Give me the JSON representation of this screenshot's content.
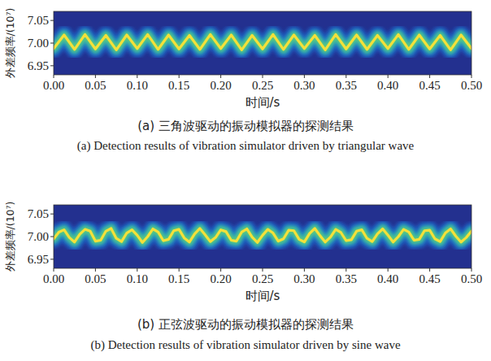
{
  "chart_data": [
    {
      "type": "line",
      "title": "(a) 三角波驱动的振动模拟器的探测结果",
      "subtitle": "(a) Detection results of vibration simulator driven by triangular wave",
      "x_label": "时间/s",
      "y_label": "外差频率/(10⁷)",
      "color": "#f4e03a",
      "grid": false,
      "xlim": [
        0,
        0.5
      ],
      "ylim": [
        6.93,
        7.07
      ],
      "xticks": [
        {
          "value": 0,
          "label": "0.00"
        },
        {
          "value": 0.05,
          "label": "0.05"
        },
        {
          "value": 0.1,
          "label": "0.10"
        },
        {
          "value": 0.15,
          "label": "0.15"
        },
        {
          "value": 0.2,
          "label": "0.20"
        },
        {
          "value": 0.25,
          "label": "0.25"
        },
        {
          "value": 0.3,
          "label": "0.30"
        },
        {
          "value": 0.35,
          "label": "0.35"
        },
        {
          "value": 0.4,
          "label": "0.40"
        },
        {
          "value": 0.45,
          "label": "0.45"
        },
        {
          "value": 0.5,
          "label": "0.50"
        }
      ],
      "yticks": [
        6.95,
        {
          "value": 7,
          "label": "7.00"
        },
        7.05
      ],
      "x": [
        0,
        0.0125,
        0.025,
        0.0375,
        0.05,
        0.0625,
        0.075,
        0.0875,
        0.1,
        0.1125,
        0.125,
        0.1375,
        0.15,
        0.1625,
        0.175,
        0.1875,
        0.2,
        0.2125,
        0.225,
        0.2375,
        0.25,
        0.2625,
        0.275,
        0.2875,
        0.3,
        0.3125,
        0.325,
        0.3375,
        0.35,
        0.3625,
        0.375,
        0.3875,
        0.4,
        0.4125,
        0.425,
        0.4375,
        0.45,
        0.4625,
        0.475,
        0.4875,
        0.5
      ],
      "values": [
        6.988,
        7.018,
        6.986,
        7.019,
        6.987,
        7.017,
        6.985,
        7.018,
        6.988,
        7.019,
        6.986,
        7.018,
        6.987,
        7.017,
        6.986,
        7.019,
        6.988,
        7.018,
        6.985,
        7.017,
        6.987,
        7.019,
        6.986,
        7.018,
        6.988,
        7.017,
        6.985,
        7.019,
        6.987,
        7.018,
        6.986,
        7.017,
        6.988,
        7.019,
        6.986,
        7.018,
        6.987,
        7.017,
        6.985,
        7.018,
        6.988
      ]
    },
    {
      "type": "line",
      "title": "(b) 正弦波驱动的振动模拟器的探测结果",
      "subtitle": "(b) Detection results of vibration simulator driven by sine wave",
      "x_label": "时间/s",
      "y_label": "外差频率/(10⁷)",
      "color": "#f4e03a",
      "grid": false,
      "xlim": [
        0,
        0.5
      ],
      "ylim": [
        6.93,
        7.07
      ],
      "xticks": [
        {
          "value": 0,
          "label": "0.00"
        },
        {
          "value": 0.05,
          "label": "0.05"
        },
        {
          "value": 0.1,
          "label": "0.10"
        },
        {
          "value": 0.15,
          "label": "0.15"
        },
        {
          "value": 0.2,
          "label": "0.20"
        },
        {
          "value": 0.25,
          "label": "0.25"
        },
        {
          "value": 0.3,
          "label": "0.30"
        },
        {
          "value": 0.35,
          "label": "0.35"
        },
        {
          "value": 0.4,
          "label": "0.40"
        },
        {
          "value": 0.45,
          "label": "0.45"
        },
        {
          "value": 0.5,
          "label": "0.50"
        }
      ],
      "yticks": [
        6.95,
        {
          "value": 7,
          "label": "7.00"
        },
        7.05
      ],
      "x": [
        0,
        0.00625,
        0.0125,
        0.01875,
        0.025,
        0.03125,
        0.0375,
        0.04375,
        0.05,
        0.05625,
        0.0625,
        0.06875,
        0.075,
        0.08125,
        0.0875,
        0.09375,
        0.1,
        0.10625,
        0.1125,
        0.11875,
        0.125,
        0.13125,
        0.1375,
        0.14375,
        0.15,
        0.15625,
        0.1625,
        0.16875,
        0.175,
        0.18125,
        0.1875,
        0.19375,
        0.2,
        0.20625,
        0.2125,
        0.21875,
        0.225,
        0.23125,
        0.2375,
        0.24375,
        0.25,
        0.25625,
        0.2625,
        0.26875,
        0.275,
        0.28125,
        0.2875,
        0.29375,
        0.3,
        0.30625,
        0.3125,
        0.31875,
        0.325,
        0.33125,
        0.3375,
        0.34375,
        0.35,
        0.35625,
        0.3625,
        0.36875,
        0.375,
        0.38125,
        0.3875,
        0.39375,
        0.4,
        0.40625,
        0.4125,
        0.41875,
        0.425,
        0.43125,
        0.4375,
        0.44375,
        0.45,
        0.45625,
        0.4625,
        0.46875,
        0.475,
        0.48125,
        0.4875,
        0.49375,
        0.5
      ],
      "values": [
        6.995,
        7.01,
        7.015,
        6.998,
        6.988,
        7.005,
        7.016,
        7.012,
        6.99,
        6.992,
        7.012,
        7.018,
        6.996,
        6.989,
        7.008,
        7.015,
        7.003,
        6.987,
        7.0,
        7.017,
        7.01,
        6.991,
        6.994,
        7.013,
        7.016,
        6.997,
        6.988,
        7.006,
        7.018,
        7.004,
        6.989,
        6.998,
        7.015,
        7.011,
        6.992,
        6.99,
        7.01,
        7.017,
        6.999,
        6.987,
        7.003,
        7.016,
        7.008,
        6.99,
        6.995,
        7.014,
        7.013,
        6.994,
        6.988,
        7.007,
        7.018,
        7.002,
        6.988,
        6.999,
        7.016,
        7.009,
        6.991,
        6.993,
        7.012,
        7.015,
        6.996,
        6.989,
        7.006,
        7.017,
        7.003,
        6.988,
        7.0,
        7.016,
        7.01,
        6.992,
        6.994,
        7.013,
        7.014,
        6.995,
        6.989,
        7.008,
        7.017,
        7.001,
        6.988,
        6.998,
        7.012
      ]
    }
  ]
}
